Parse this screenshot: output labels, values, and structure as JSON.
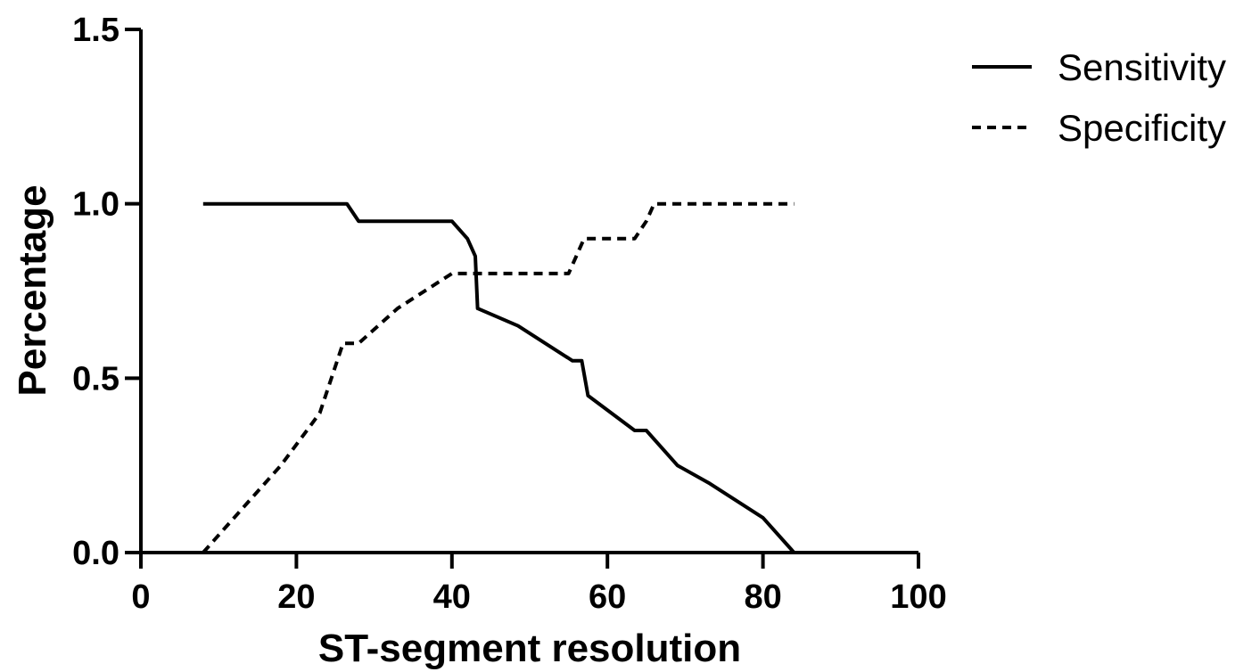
{
  "chart_data": {
    "type": "line",
    "xlabel": "ST-segment resolution",
    "ylabel": "Percentage",
    "xlim": [
      0,
      100
    ],
    "ylim": [
      0,
      1.5
    ],
    "xticks": [
      0,
      20,
      40,
      60,
      80,
      100
    ],
    "xtick_labels": [
      "0",
      "20",
      "40",
      "60",
      "80",
      "100"
    ],
    "yticks": [
      0,
      0.5,
      1.0,
      1.5
    ],
    "ytick_labels": [
      "0.0",
      "0.5",
      "1.0",
      "1.5"
    ],
    "grid": false,
    "legend_position": "top-right",
    "series": [
      {
        "name": "Sensitivity",
        "line_style": "solid",
        "color": "#000000",
        "x": [
          8,
          26.5,
          28,
          40,
          42,
          43,
          43.3,
          48.5,
          55.5,
          56.7,
          57.5,
          63.5,
          65,
          69,
          73,
          80,
          84
        ],
        "y": [
          1.0,
          1.0,
          0.95,
          0.95,
          0.9,
          0.85,
          0.7,
          0.65,
          0.55,
          0.55,
          0.45,
          0.35,
          0.35,
          0.25,
          0.2,
          0.1,
          0.0
        ]
      },
      {
        "name": "Specificity",
        "line_style": "dashed",
        "color": "#000000",
        "x": [
          8,
          10,
          12,
          18,
          23,
          26,
          28,
          33,
          40,
          55,
          56,
          57,
          63.5,
          65,
          66,
          84
        ],
        "y": [
          0.0,
          0.05,
          0.1,
          0.25,
          0.4,
          0.6,
          0.6,
          0.7,
          0.8,
          0.8,
          0.85,
          0.9,
          0.9,
          0.95,
          1.0,
          1.0
        ]
      }
    ]
  }
}
